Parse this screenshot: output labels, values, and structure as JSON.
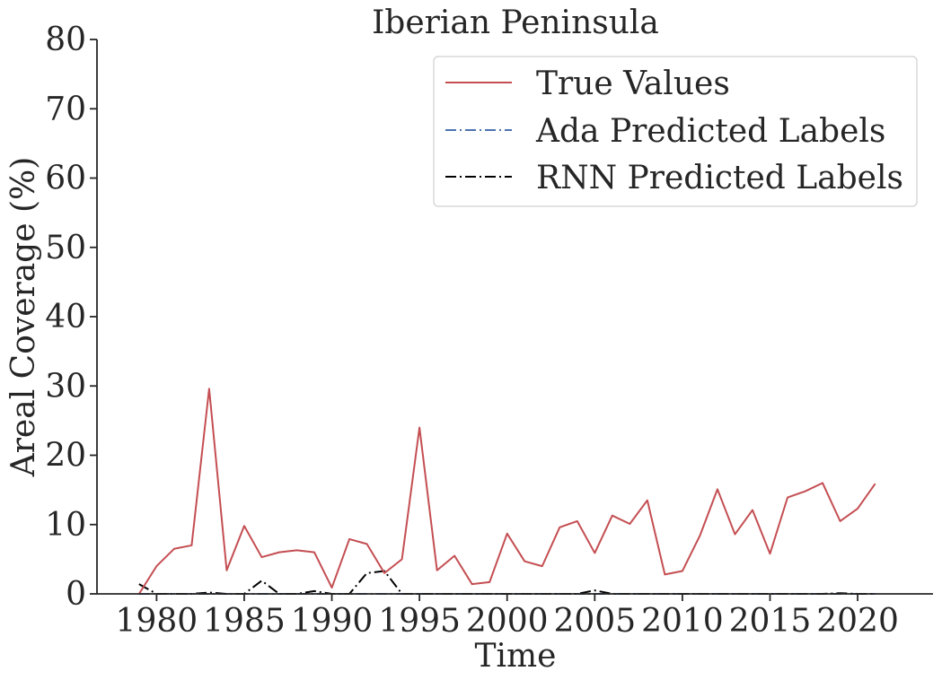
{
  "chart_data": {
    "type": "line",
    "title": "Iberian Peninsula",
    "xlabel": "Time",
    "ylabel": "Areal Coverage (%)",
    "xlim": [
      1976.6,
      2024.3
    ],
    "ylim": [
      0,
      80
    ],
    "xticks": [
      1980,
      1985,
      1990,
      1995,
      2000,
      2005,
      2010,
      2015,
      2020
    ],
    "yticks": [
      0,
      10,
      20,
      30,
      40,
      50,
      60,
      70,
      80
    ],
    "grid": false,
    "legend_position": "top-right",
    "x": [
      1979,
      1980,
      1981,
      1982,
      1983,
      1984,
      1985,
      1986,
      1987,
      1988,
      1989,
      1990,
      1991,
      1992,
      1993,
      1994,
      1995,
      1996,
      1997,
      1998,
      1999,
      2000,
      2001,
      2002,
      2003,
      2004,
      2005,
      2006,
      2007,
      2008,
      2009,
      2010,
      2011,
      2012,
      2013,
      2014,
      2015,
      2016,
      2017,
      2018,
      2019,
      2020,
      2021
    ],
    "series": [
      {
        "name": "True Values",
        "color": "#c44e52",
        "style": "solid",
        "values": [
          0,
          4,
          6.5,
          7,
          29.6,
          3.4,
          9.8,
          5.3,
          6,
          6.3,
          6,
          0.9,
          7.9,
          7.2,
          3,
          5,
          24,
          3.4,
          5.5,
          1.4,
          1.7,
          8.7,
          4.7,
          4,
          9.6,
          10.5,
          5.9,
          11.3,
          10.1,
          13.5,
          2.8,
          3.3,
          8.4,
          15.1,
          8.6,
          12.1,
          5.8,
          13.9,
          14.8,
          16,
          10.5,
          12.3,
          15.9
        ]
      },
      {
        "name": "Ada Predicted Labels",
        "color": "#4c72b0",
        "style": "dashdot",
        "values": [
          0,
          0,
          0,
          0,
          0,
          0,
          0,
          0,
          0,
          0,
          0,
          0,
          0,
          0,
          0,
          0,
          0,
          0,
          0,
          0,
          0,
          0,
          0,
          0,
          0,
          0,
          0,
          0,
          0,
          0,
          0,
          0,
          0,
          0,
          0,
          0,
          0,
          0,
          0,
          0,
          0,
          0,
          0
        ]
      },
      {
        "name": "RNN Predicted Labels",
        "color": "#000000",
        "style": "dashdot",
        "values": [
          1.4,
          0,
          0,
          0,
          0.2,
          0,
          0,
          1.9,
          0,
          0,
          0.4,
          0,
          0,
          3,
          3.3,
          0,
          0,
          0,
          0,
          0,
          0,
          0,
          0,
          0,
          0,
          0,
          0.5,
          0,
          0,
          0,
          0,
          0,
          0,
          0,
          0,
          0,
          0,
          0,
          0,
          0,
          0.1,
          0,
          0
        ]
      }
    ]
  }
}
